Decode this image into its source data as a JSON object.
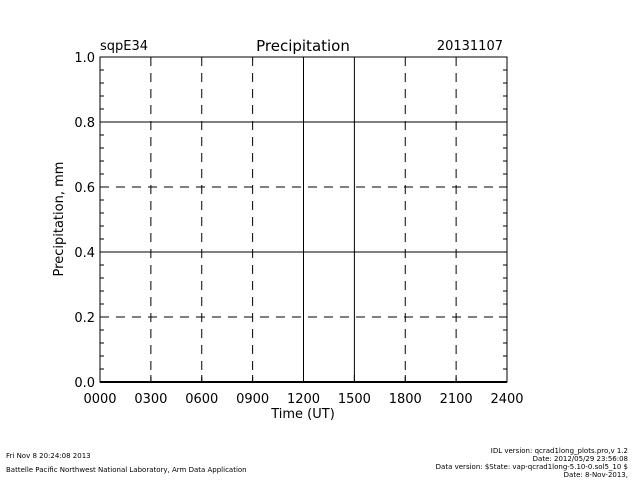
{
  "chart_data": {
    "type": "line",
    "site_label": "sqpE34",
    "title": "Precipitation",
    "date_label": "20131107",
    "xlabel": "Time (UT)",
    "ylabel": "Precipitation, mm",
    "xlim": [
      0,
      2400
    ],
    "ylim": [
      0,
      1.0
    ],
    "x_ticks": [
      "0000",
      "0300",
      "0600",
      "0900",
      "1200",
      "1500",
      "1800",
      "2100",
      "2400"
    ],
    "y_ticks": [
      "0.0",
      "0.2",
      "0.4",
      "0.6",
      "0.8",
      "1.0"
    ],
    "grid": true,
    "series": []
  },
  "footer": {
    "left_line1": "Fri Nov  8 20:24:08 2013",
    "left_line2": "Battelle Pacific Northwest National Laboratory, Arm Data Application",
    "right_line1": "IDL version: qcrad1long_plots.pro,v 1.2",
    "right_line2": "Date: 2012/05/29 23:56:08",
    "right_line3": "Data version: $State: vap-qcrad1long-5.10-0.sol5_10 $",
    "right_line4": "Date: 8-Nov-2013,"
  }
}
